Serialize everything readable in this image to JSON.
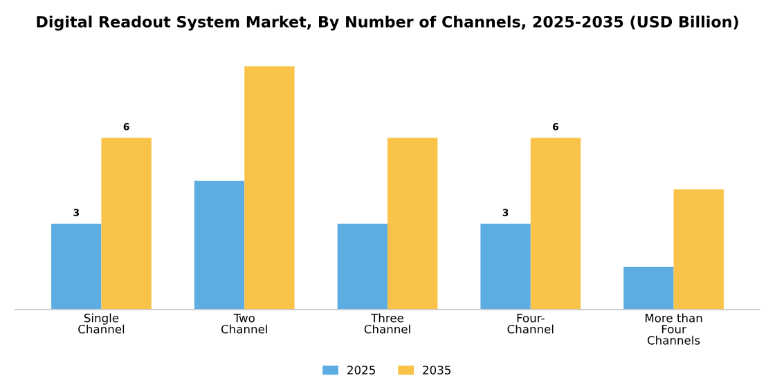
{
  "chart_data": {
    "type": "bar",
    "title": "Digital Readout System Market, By Number of Channels, 2025-2035 (USD Billion)",
    "categories": [
      "Single\nChannel",
      "Two\nChannel",
      "Three\nChannel",
      "Four-\nChannel",
      "More than\nFour\nChannels"
    ],
    "legend": "bottom",
    "grid": false,
    "series": [
      {
        "name": "2025",
        "color": "#5dade2",
        "values": [
          3,
          4.5,
          3,
          3,
          1.5
        ],
        "value_labels": [
          "3",
          null,
          null,
          "3",
          null
        ]
      },
      {
        "name": "2035",
        "color": "#f9c349",
        "values": [
          6,
          8.5,
          6,
          6,
          4.2
        ],
        "value_labels": [
          "6",
          null,
          null,
          "6",
          null
        ]
      }
    ]
  }
}
